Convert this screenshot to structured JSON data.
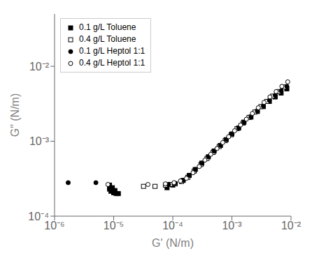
{
  "chart_data": {
    "type": "scatter",
    "xlabel": "G' (N/m)",
    "ylabel": "G\" (N/m)",
    "log": true,
    "grid": false,
    "legend": "upper left",
    "xlim": [
      1e-06,
      0.01
    ],
    "ylim": [
      0.0001,
      0.05
    ],
    "xticks": [
      {
        "value": 1e-06,
        "label": "10⁻⁶"
      },
      {
        "value": 1e-05,
        "label": "10⁻⁵"
      },
      {
        "value": 0.0001,
        "label": "10⁻⁴"
      },
      {
        "value": 0.001,
        "label": "10⁻³"
      },
      {
        "value": 0.01,
        "label": "10⁻²"
      }
    ],
    "yticks": [
      {
        "value": 0.0001,
        "label": "10⁻⁴"
      },
      {
        "value": 0.001,
        "label": "10⁻³"
      },
      {
        "value": 0.01,
        "label": "10⁻²"
      }
    ],
    "series": [
      {
        "name": "0.1 g/L Toluene",
        "color": "black",
        "marker": "square",
        "x": [
          8.5e-06,
          9.5e-06,
          1.05e-05,
          1.2e-05,
          8.5e-06,
          9e-06,
          1e-05,
          1.1e-05,
          8e-05,
          0.0001,
          0.00015,
          0.00019,
          0.00024,
          0.00031,
          0.0004,
          0.0005,
          0.00064,
          0.0008,
          0.001,
          0.0013,
          0.0016,
          0.0021,
          0.0027,
          0.0034,
          0.0043,
          0.0054,
          0.0068,
          0.0085
        ],
        "y": [
          0.00026,
          0.00024,
          0.00022,
          0.0002,
          0.00023,
          0.000215,
          0.000205,
          0.0002,
          0.00024,
          0.00026,
          0.0003,
          0.00035,
          0.00042,
          0.00051,
          0.00062,
          0.00074,
          0.00088,
          0.00105,
          0.00125,
          0.0015,
          0.0018,
          0.0021,
          0.0025,
          0.0029,
          0.0034,
          0.0039,
          0.0044,
          0.005
        ]
      },
      {
        "name": "0.4 g/L Toluene",
        "color": "black",
        "marker": "open_square",
        "x": [
          3.2e-05,
          5e-05,
          7.5e-05,
          9e-05,
          0.00011,
          0.00014,
          0.00018,
          0.00023,
          0.0003,
          0.00038,
          0.00048,
          0.00061,
          0.00077,
          0.00097,
          0.00122,
          0.00155,
          0.00195,
          0.00245,
          0.0031,
          0.0039,
          0.0049,
          0.0062,
          0.0078
        ],
        "y": [
          0.00025,
          0.00025,
          0.00026,
          0.000265,
          0.00027,
          0.00029,
          0.00033,
          0.0004,
          0.00049,
          0.00059,
          0.00071,
          0.00085,
          0.00102,
          0.00122,
          0.00147,
          0.00175,
          0.00208,
          0.00245,
          0.0029,
          0.0034,
          0.004,
          0.0046,
          0.0053
        ]
      },
      {
        "name": "0.1 g/L Heptol 1:1",
        "color": "black",
        "marker": "circle",
        "x": [
          1.7e-06,
          5e-06,
          8.5e-05,
          0.00011,
          0.00015,
          0.00019,
          0.00024,
          0.00031,
          0.0004,
          0.0005,
          0.00064,
          0.0008,
          0.001,
          0.0013,
          0.0016,
          0.0021,
          0.0027,
          0.0034,
          0.0043,
          0.0054,
          0.0068,
          0.0085
        ],
        "y": [
          0.00028,
          0.00028,
          0.000265,
          0.000275,
          0.0003,
          0.00035,
          0.00042,
          0.00051,
          0.00062,
          0.00074,
          0.00088,
          0.00105,
          0.00125,
          0.0015,
          0.00178,
          0.0021,
          0.0025,
          0.00295,
          0.0035,
          0.0041,
          0.0047,
          0.0054
        ]
      },
      {
        "name": "0.4 g/L Heptol 1:1",
        "color": "black",
        "marker": "open_circle",
        "x": [
          8e-06,
          3.8e-05,
          7.5e-05,
          0.000105,
          0.000135,
          0.00017,
          0.00022,
          0.00028,
          0.00035,
          0.00044,
          0.00056,
          0.0007,
          0.00088,
          0.00111,
          0.0014,
          0.00176,
          0.00222,
          0.0028,
          0.0035,
          0.0044,
          0.0056,
          0.007,
          0.0088
        ],
        "y": [
          0.000265,
          0.000265,
          0.00027,
          0.00028,
          0.000295,
          0.00032,
          0.00038,
          0.00046,
          0.00056,
          0.00067,
          0.0008,
          0.00096,
          0.00115,
          0.00138,
          0.00165,
          0.00197,
          0.00235,
          0.0028,
          0.0033,
          0.0039,
          0.0046,
          0.0054,
          0.0062
        ]
      }
    ]
  }
}
